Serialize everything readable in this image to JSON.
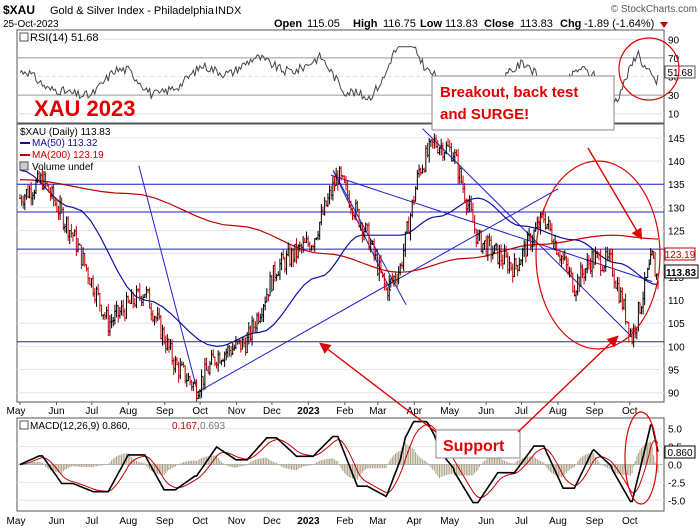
{
  "header": {
    "symbol": "$XAU",
    "name": "Gold & Silver Index - Philadelphia",
    "exchange": "INDX",
    "date": "25-Oct-2023",
    "watermark": "© StockCharts.com",
    "open_label": "Open",
    "open": "115.05",
    "high_label": "High",
    "high": "116.75",
    "low_label": "Low",
    "low": "113.83",
    "close_label": "Close",
    "close": "113.83",
    "chg_label": "Chg",
    "chg": "-1.89 (-1.64%)"
  },
  "annotations": {
    "title": "XAU 2023",
    "breakout_line1": "Breakout, back test",
    "breakout_line2": "and SURGE!",
    "support": "Support"
  },
  "legend": {
    "price": "$XAU (Daily) 113.83",
    "ma50": "MA(50) 113.32",
    "ma200": "MA(200) 123.19",
    "volume": "Volume undef"
  },
  "rsi": {
    "label": "RSI(14) 51.68",
    "ticks": [
      "90",
      "70",
      "50",
      "30",
      "10"
    ],
    "last": "51.68"
  },
  "price_axis": {
    "ticks": [
      "145",
      "140",
      "135",
      "130",
      "125",
      "120",
      "115",
      "110",
      "105",
      "100",
      "95",
      "90"
    ],
    "ma200_last": "123.19",
    "last": "113.83"
  },
  "macd": {
    "label_main": "MACD(12,26,9) 0.860,",
    "label_signal": "0.167,",
    "label_hist": "0.693",
    "ticks": [
      "5.0",
      "2.5",
      "0.0",
      "-2.5",
      "-5.0"
    ],
    "last": "0.860"
  },
  "months": [
    "May",
    "Jun",
    "Jul",
    "Aug",
    "Sep",
    "Oct",
    "Nov",
    "Dec",
    "2023",
    "Feb",
    "Mar",
    "Apr",
    "May",
    "Jun",
    "Jul",
    "Aug",
    "Sep",
    "Oct"
  ],
  "colors": {
    "ma50": "#1010a0",
    "ma200": "#c00000",
    "annotation": "#e00000",
    "trend": "#1f1fd0",
    "up": "#000000",
    "down": "#c00000"
  },
  "chart_data": {
    "type": "line",
    "x_range": [
      "2022-05-01",
      "2023-10-25"
    ],
    "ylim": [
      88,
      148
    ],
    "key_points": [
      {
        "x": "2022-05-01",
        "y": 132
      },
      {
        "x": "2022-05-20",
        "y": 136
      },
      {
        "x": "2022-06-15",
        "y": 124
      },
      {
        "x": "2022-07-15",
        "y": 105
      },
      {
        "x": "2022-08-15",
        "y": 112
      },
      {
        "x": "2022-09-10",
        "y": 96
      },
      {
        "x": "2022-09-28",
        "y": 91
      },
      {
        "x": "2022-10-15",
        "y": 98
      },
      {
        "x": "2022-11-10",
        "y": 101
      },
      {
        "x": "2022-12-05",
        "y": 117
      },
      {
        "x": "2023-01-05",
        "y": 123
      },
      {
        "x": "2023-01-26",
        "y": 137
      },
      {
        "x": "2023-02-20",
        "y": 124
      },
      {
        "x": "2023-03-08",
        "y": 112
      },
      {
        "x": "2023-03-20",
        "y": 117
      },
      {
        "x": "2023-04-05",
        "y": 138
      },
      {
        "x": "2023-04-18",
        "y": 144
      },
      {
        "x": "2023-05-04",
        "y": 142
      },
      {
        "x": "2023-05-25",
        "y": 123
      },
      {
        "x": "2023-06-25",
        "y": 117
      },
      {
        "x": "2023-07-20",
        "y": 128
      },
      {
        "x": "2023-08-15",
        "y": 113
      },
      {
        "x": "2023-08-30",
        "y": 119
      },
      {
        "x": "2023-09-15",
        "y": 118
      },
      {
        "x": "2023-10-03",
        "y": 102
      },
      {
        "x": "2023-10-15",
        "y": 114
      },
      {
        "x": "2023-10-20",
        "y": 119
      },
      {
        "x": "2023-10-25",
        "y": 113.83
      }
    ],
    "ma50_points": [
      {
        "x": "2022-05-01",
        "y": 138
      },
      {
        "x": "2022-06-15",
        "y": 130
      },
      {
        "x": "2022-08-15",
        "y": 110
      },
      {
        "x": "2022-10-15",
        "y": 100
      },
      {
        "x": "2022-11-20",
        "y": 103
      },
      {
        "x": "2023-01-10",
        "y": 115
      },
      {
        "x": "2023-02-15",
        "y": 124
      },
      {
        "x": "2023-03-20",
        "y": 124
      },
      {
        "x": "2023-04-20",
        "y": 128
      },
      {
        "x": "2023-05-25",
        "y": 132
      },
      {
        "x": "2023-07-01",
        "y": 126
      },
      {
        "x": "2023-08-15",
        "y": 123
      },
      {
        "x": "2023-09-20",
        "y": 118
      },
      {
        "x": "2023-10-25",
        "y": 113.32
      }
    ],
    "ma200_points": [
      {
        "x": "2022-05-01",
        "y": 136
      },
      {
        "x": "2022-08-01",
        "y": 133
      },
      {
        "x": "2022-11-01",
        "y": 126
      },
      {
        "x": "2023-01-15",
        "y": 120
      },
      {
        "x": "2023-03-20",
        "y": 116
      },
      {
        "x": "2023-05-15",
        "y": 119
      },
      {
        "x": "2023-07-15",
        "y": 122
      },
      {
        "x": "2023-09-15",
        "y": 124
      },
      {
        "x": "2023-10-25",
        "y": 123.19
      }
    ],
    "horizontal_levels": [
      135,
      129,
      121,
      101
    ],
    "trendlines": [
      {
        "from": {
          "x": "2022-09-28",
          "y": 90
        },
        "to": {
          "x": "2023-08-01",
          "y": 134
        }
      },
      {
        "from": {
          "x": "2022-08-10",
          "y": 139
        },
        "to": {
          "x": "2022-09-28",
          "y": 91
        }
      },
      {
        "from": {
          "x": "2023-04-08",
          "y": 147
        },
        "to": {
          "x": "2023-10-03",
          "y": 102
        }
      },
      {
        "from": {
          "x": "2023-01-22",
          "y": 138
        },
        "to": {
          "x": "2023-03-12",
          "y": 112
        }
      },
      {
        "from": {
          "x": "2023-01-22",
          "y": 138
        },
        "to": {
          "x": "2023-03-25",
          "y": 109
        }
      },
      {
        "from": {
          "x": "2023-01-20",
          "y": 137
        },
        "to": {
          "x": "2023-10-20",
          "y": 114
        }
      }
    ]
  }
}
